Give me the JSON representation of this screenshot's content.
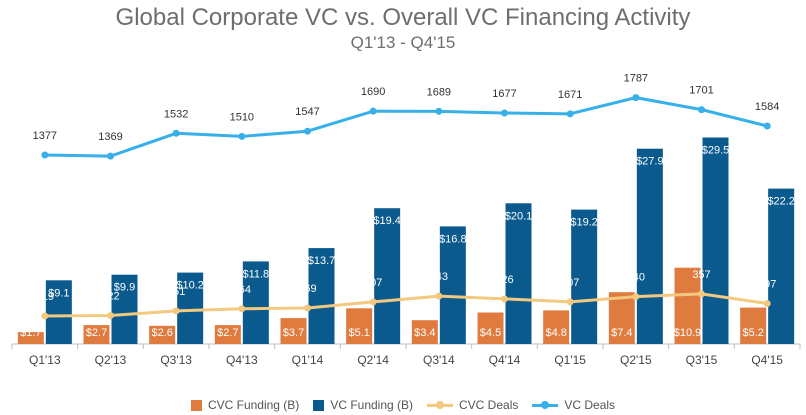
{
  "chart_data": {
    "type": "bar",
    "title": "Global Corporate VC vs. Overall VC Financing Activity",
    "subtitle": "Q1'13 - Q4'15",
    "categories": [
      "Q1'13",
      "Q2'13",
      "Q3'13",
      "Q4'13",
      "Q1'14",
      "Q2'14",
      "Q3'14",
      "Q4'14",
      "Q1'15",
      "Q2'15",
      "Q3'15",
      "Q4'15"
    ],
    "series": [
      {
        "name": "CVC Funding (B)",
        "kind": "bar",
        "color": "#e07b3f",
        "values": [
          1.7,
          2.7,
          2.6,
          2.7,
          3.7,
          5.1,
          3.4,
          4.5,
          4.8,
          7.4,
          10.9,
          5.2
        ],
        "labels": [
          "$1.7",
          "$2.7",
          "$2.6",
          "$2.7",
          "$3.7",
          "$5.1",
          "$3.4",
          "$4.5",
          "$4.8",
          "$7.4",
          "$10.9",
          "$5.2"
        ]
      },
      {
        "name": "VC Funding (B)",
        "kind": "bar",
        "color": "#0b5a8e",
        "values": [
          9.1,
          9.9,
          10.2,
          11.8,
          13.7,
          19.4,
          16.8,
          20.1,
          19.2,
          27.9,
          29.5,
          22.2
        ],
        "labels": [
          "$9.1",
          "$9.9",
          "$10.2",
          "$11.8",
          "$13.7",
          "$19.4",
          "$16.8",
          "$20.1",
          "$19.2",
          "$27.9",
          "$29.5",
          "$22.2"
        ]
      },
      {
        "name": "CVC Deals",
        "kind": "line",
        "color": "#f2c97e",
        "values": [
          219,
          222,
          251,
          264,
          269,
          307,
          343,
          326,
          307,
          340,
          357,
          297
        ]
      },
      {
        "name": "VC Deals",
        "kind": "line",
        "color": "#37b0ea",
        "values": [
          1377,
          1369,
          1532,
          1510,
          1547,
          1690,
          1689,
          1677,
          1671,
          1787,
          1701,
          1584
        ]
      }
    ],
    "legend": "bottom"
  }
}
